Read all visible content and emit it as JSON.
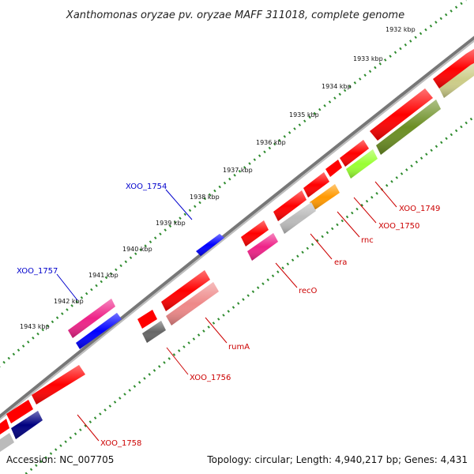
{
  "title": "Xanthomonas oryzae pv. oryzae MAFF 311018, complete genome",
  "footer": {
    "accession": "Accession: NC_007705",
    "topology": "Topology: circular; Length: 4,940,217 bp; Genes: 4,431"
  },
  "kbp_ticks": [
    "1932 kbp",
    "1933 kbp",
    "1934 kbp",
    "1935 kbp",
    "1936 kbp",
    "1937 kbp",
    "1938 kbp",
    "1939 kbp",
    "1940 kbp",
    "1941 kbp",
    "1942 kbp",
    "1943 kbp"
  ],
  "gene_labels": [
    {
      "text": "XOO_1754",
      "color": "#0000cc"
    },
    {
      "text": "XOO_1757",
      "color": "#0000cc"
    },
    {
      "text": "XOO_1749",
      "color": "#cc0000"
    },
    {
      "text": "XOO_1750",
      "color": "#cc0000"
    },
    {
      "text": "rnc",
      "color": "#cc0000"
    },
    {
      "text": "era",
      "color": "#cc0000"
    },
    {
      "text": "recO",
      "color": "#cc0000"
    },
    {
      "text": "rumA",
      "color": "#cc0000"
    },
    {
      "text": "XOO_1756",
      "color": "#cc0000"
    },
    {
      "text": "XOO_1758",
      "color": "#cc0000"
    }
  ],
  "colors": {
    "red": "#ff0000",
    "magenta": "#ee2288",
    "blue": "#0000ff",
    "navy": "#000080",
    "pink": "#ee8888",
    "gray": "#bbbbbb",
    "darkgray": "#666666",
    "orange": "#ff9900",
    "lime": "#99ff33",
    "olive": "#6b8e23",
    "khaki": "#cccc88"
  }
}
